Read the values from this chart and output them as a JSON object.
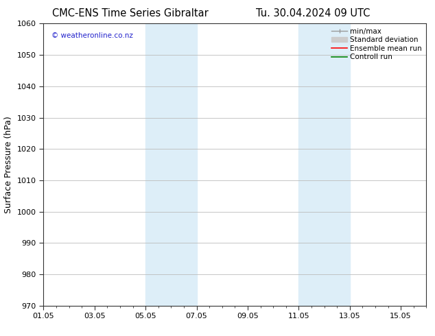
{
  "title_left": "CMC-ENS Time Series Gibraltar",
  "title_right": "Tu. 30.04.2024 09 UTC",
  "ylabel": "Surface Pressure (hPa)",
  "ylim": [
    970,
    1060
  ],
  "yticks": [
    970,
    980,
    990,
    1000,
    1010,
    1020,
    1030,
    1040,
    1050,
    1060
  ],
  "xlim": [
    0,
    15
  ],
  "xtick_labels": [
    "01.05",
    "03.05",
    "05.05",
    "07.05",
    "09.05",
    "11.05",
    "13.05",
    "15.05"
  ],
  "xtick_positions": [
    0,
    2,
    4,
    6,
    8,
    10,
    12,
    14
  ],
  "minor_xtick_positions": [
    0,
    0.5,
    1,
    1.5,
    2,
    2.5,
    3,
    3.5,
    4,
    4.5,
    5,
    5.5,
    6,
    6.5,
    7,
    7.5,
    8,
    8.5,
    9,
    9.5,
    10,
    10.5,
    11,
    11.5,
    12,
    12.5,
    13,
    13.5,
    14,
    14.5,
    15
  ],
  "shaded_regions": [
    {
      "x_start": 4,
      "x_end": 6
    },
    {
      "x_start": 10,
      "x_end": 12
    }
  ],
  "shaded_color": "#ddeef8",
  "watermark_text": "© weatheronline.co.nz",
  "watermark_color": "#2222cc",
  "bg_color": "#ffffff",
  "grid_color": "#bbbbbb",
  "spine_color": "#333333",
  "title_fontsize": 10.5,
  "ylabel_fontsize": 9,
  "tick_fontsize": 8,
  "legend_fontsize": 7.5
}
